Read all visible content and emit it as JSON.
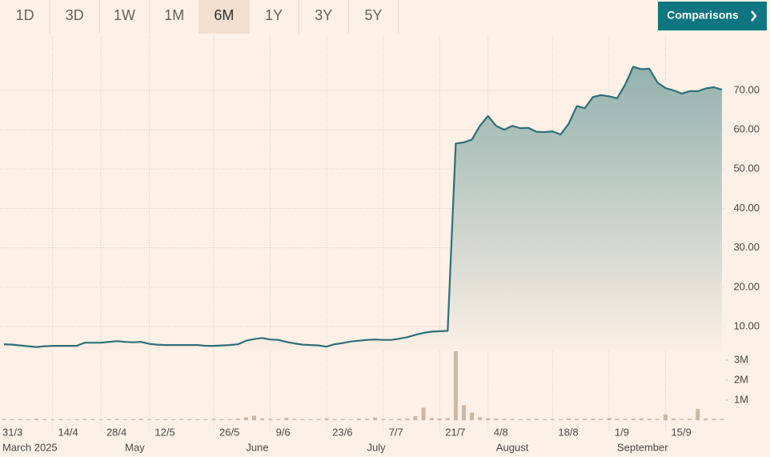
{
  "controls": {
    "ranges": [
      "1D",
      "3D",
      "1W",
      "1M",
      "6M",
      "1Y",
      "3Y",
      "5Y"
    ],
    "selected": "6M",
    "comparisons": "Comparisons"
  },
  "chart_data": {
    "type": "line",
    "color": "#2f6f78",
    "categories": [
      "31/3",
      null,
      null,
      null,
      null,
      null,
      "14/4",
      null,
      null,
      null,
      null,
      null,
      "28/4",
      null,
      null,
      null,
      null,
      null,
      "12/5",
      null,
      null,
      null,
      null,
      null,
      null,
      null,
      "26/5",
      null,
      null,
      null,
      null,
      null,
      null,
      "9/6",
      null,
      null,
      null,
      null,
      null,
      null,
      "23/6",
      null,
      null,
      null,
      null,
      null,
      null,
      "7/7",
      null,
      null,
      null,
      null,
      null,
      null,
      "21/7",
      null,
      null,
      null,
      null,
      null,
      "4/8",
      null,
      null,
      null,
      null,
      null,
      null,
      null,
      "18/8",
      null,
      null,
      null,
      null,
      null,
      null,
      "1/9",
      null,
      null,
      null,
      null,
      null,
      null,
      "15/9",
      null,
      null,
      null,
      null,
      null,
      null,
      null
    ],
    "month_labels": [
      "March 2025",
      null,
      null,
      null,
      null,
      null,
      null,
      null,
      null,
      null,
      null,
      null,
      null,
      null,
      null,
      "May",
      null,
      null,
      null,
      null,
      null,
      null,
      null,
      null,
      null,
      null,
      null,
      null,
      null,
      null,
      "June",
      null,
      null,
      null,
      null,
      null,
      null,
      null,
      null,
      null,
      null,
      null,
      null,
      null,
      null,
      "July",
      null,
      null,
      null,
      null,
      null,
      null,
      null,
      null,
      null,
      null,
      null,
      null,
      null,
      null,
      null,
      "August",
      null,
      null,
      null,
      null,
      null,
      null,
      null,
      null,
      null,
      null,
      null,
      null,
      null,
      null,
      "September",
      null,
      null,
      null,
      null,
      null,
      null,
      null,
      null,
      null,
      null,
      null,
      null,
      null
    ],
    "values": [
      5.5,
      5.4,
      5.2,
      5.0,
      4.8,
      5.0,
      5.1,
      5.1,
      5.1,
      5.1,
      5.9,
      5.9,
      5.9,
      6.1,
      6.3,
      6.1,
      6.0,
      6.1,
      5.6,
      5.4,
      5.3,
      5.3,
      5.3,
      5.3,
      5.3,
      5.1,
      5.1,
      5.2,
      5.3,
      5.5,
      6.4,
      6.8,
      7.1,
      6.7,
      6.6,
      6.1,
      5.7,
      5.4,
      5.3,
      5.2,
      4.9,
      5.5,
      5.8,
      6.2,
      6.4,
      6.6,
      6.7,
      6.6,
      6.6,
      6.9,
      7.3,
      7.9,
      8.4,
      8.7,
      8.8,
      8.9,
      56.5,
      56.8,
      57.5,
      61.0,
      63.5,
      61.0,
      60.0,
      61.0,
      60.4,
      60.5,
      59.5,
      59.4,
      59.6,
      58.8,
      61.5,
      66.0,
      65.5,
      68.3,
      68.8,
      68.5,
      68.0,
      71.5,
      76.0,
      75.4,
      75.5,
      72.0,
      70.6,
      70.0,
      69.2,
      69.8,
      69.8,
      70.5,
      70.8,
      70.2
    ],
    "ylim": [
      4,
      84
    ],
    "yticks": [
      {
        "value": 10,
        "label": "10.00"
      },
      {
        "value": 20,
        "label": "20.00"
      },
      {
        "value": 30,
        "label": "30.00"
      },
      {
        "value": 40,
        "label": "40.00"
      },
      {
        "value": 50,
        "label": "50.00"
      },
      {
        "value": 60,
        "label": "60.00"
      },
      {
        "value": 70,
        "label": "70.00"
      }
    ],
    "grid": true,
    "volume": {
      "color": "#cdb7a6",
      "values": [
        60000,
        40000,
        50000,
        40000,
        70000,
        50000,
        40000,
        50000,
        30000,
        40000,
        60000,
        50000,
        40000,
        50000,
        60000,
        40000,
        50000,
        70000,
        50000,
        40000,
        50000,
        40000,
        60000,
        50000,
        40000,
        50000,
        60000,
        40000,
        50000,
        80000,
        150000,
        220000,
        90000,
        60000,
        50000,
        120000,
        60000,
        50000,
        40000,
        60000,
        90000,
        50000,
        60000,
        40000,
        80000,
        70000,
        130000,
        60000,
        50000,
        70000,
        90000,
        200000,
        620000,
        110000,
        90000,
        100000,
        3450000,
        750000,
        380000,
        150000,
        90000,
        80000,
        70000,
        60000,
        50000,
        60000,
        70000,
        50000,
        60000,
        50000,
        90000,
        60000,
        70000,
        80000,
        60000,
        110000,
        70000,
        60000,
        80000,
        90000,
        70000,
        60000,
        280000,
        80000,
        60000,
        70000,
        560000,
        90000,
        70000,
        60000
      ],
      "ylim": [
        0,
        3600000
      ],
      "yticks": [
        {
          "value": 1000000,
          "label": "1M"
        },
        {
          "value": 2000000,
          "label": "2M"
        },
        {
          "value": 3000000,
          "label": "3M"
        }
      ]
    }
  }
}
